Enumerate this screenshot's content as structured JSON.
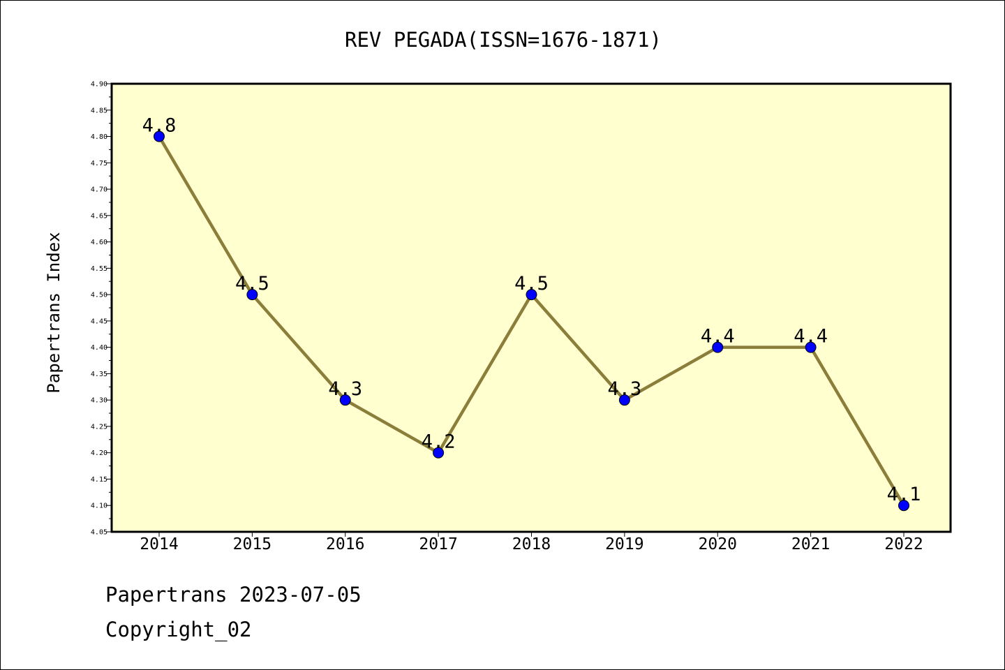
{
  "chart_data": {
    "type": "line",
    "title": "REV PEGADA(ISSN=1676-1871)",
    "xlabel": "",
    "ylabel": "Papertrans Index",
    "categories": [
      "2014",
      "2015",
      "2016",
      "2017",
      "2018",
      "2019",
      "2020",
      "2021",
      "2022"
    ],
    "series": [
      {
        "values": [
          4.8,
          4.5,
          4.3,
          4.2,
          4.5,
          4.3,
          4.4,
          4.4,
          4.1
        ],
        "data_labels": [
          "4.8",
          "4.5",
          "4.3",
          "4.2",
          "4.5",
          "4.3",
          "4.4",
          "4.4",
          "4.1"
        ],
        "line_color": "#8b7d3a",
        "marker_color": "#0000ff"
      }
    ],
    "ylim": [
      4.05,
      4.9
    ],
    "yticks": [
      "4.05",
      "4.10",
      "4.15",
      "4.20",
      "4.25",
      "4.30",
      "4.35",
      "4.40",
      "4.45",
      "4.50",
      "4.55",
      "4.60",
      "4.65",
      "4.70",
      "4.75",
      "4.80",
      "4.85",
      "4.90"
    ],
    "grid": false,
    "legend": "none",
    "plot_background": "#ffffd0"
  },
  "footer": {
    "line1": "Papertrans 2023-07-05",
    "line2": "Copyright_02"
  }
}
